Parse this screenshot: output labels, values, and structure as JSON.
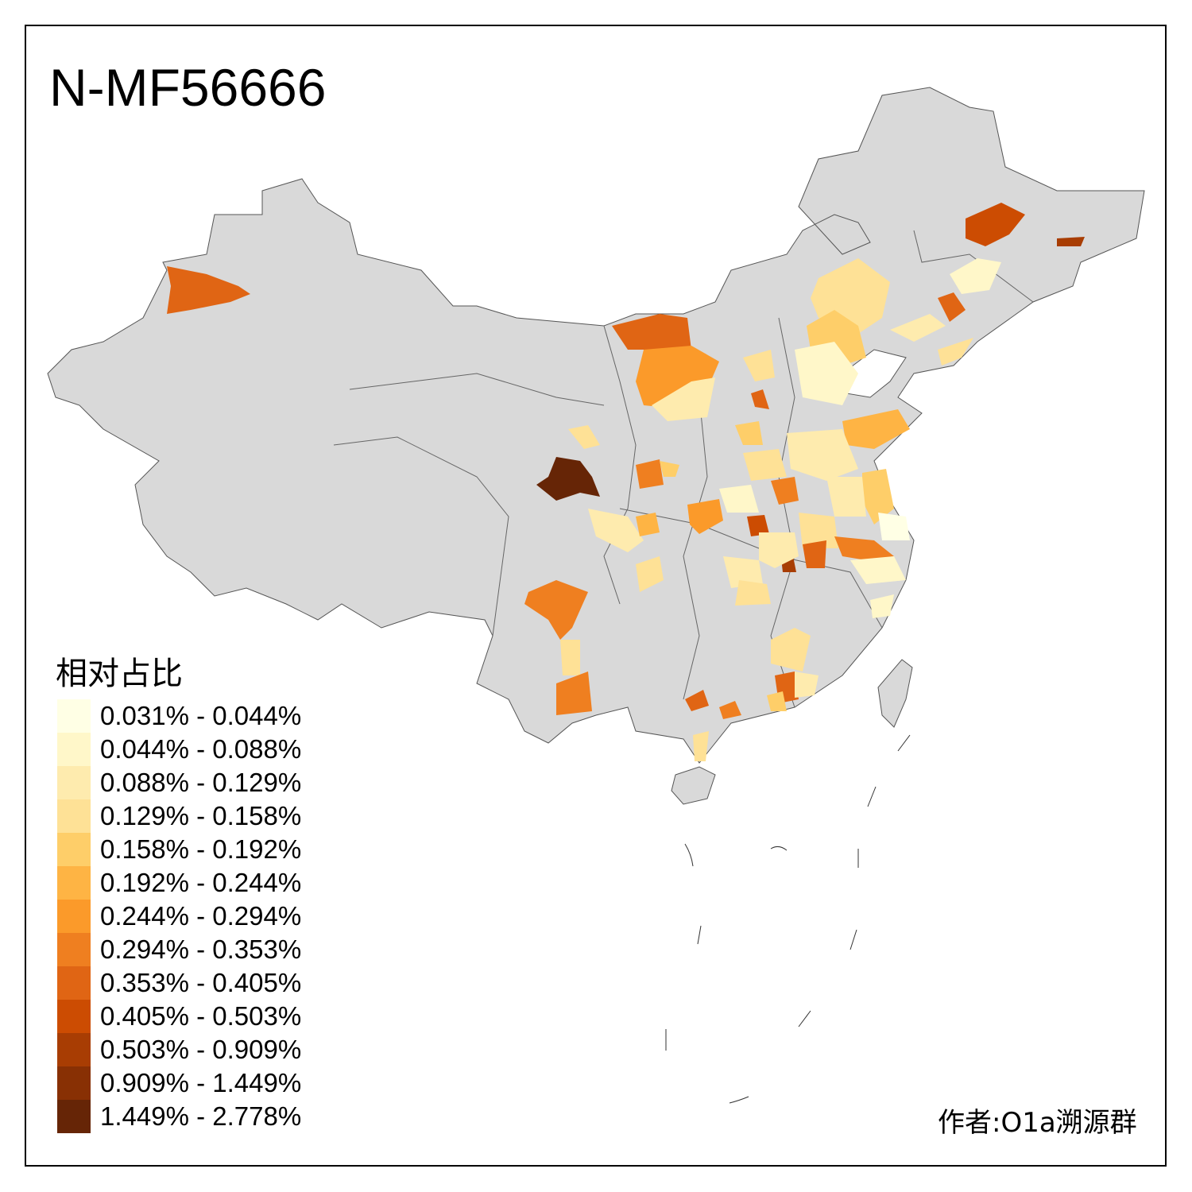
{
  "title": "N-MF56666",
  "legend": {
    "title": "相对占比",
    "classes": [
      {
        "label": "0.031% - 0.044%",
        "color": "#FFFFE5"
      },
      {
        "label": "0.044% - 0.088%",
        "color": "#FFF7C9"
      },
      {
        "label": "0.088% - 0.129%",
        "color": "#FEEBAE"
      },
      {
        "label": "0.129% - 0.158%",
        "color": "#FEE196"
      },
      {
        "label": "0.158% - 0.192%",
        "color": "#FECE69"
      },
      {
        "label": "0.192% - 0.244%",
        "color": "#FEB444"
      },
      {
        "label": "0.244% - 0.294%",
        "color": "#FB9A2A"
      },
      {
        "label": "0.294% - 0.353%",
        "color": "#EF7F20"
      },
      {
        "label": "0.353% - 0.405%",
        "color": "#E06514"
      },
      {
        "label": "0.405% - 0.503%",
        "color": "#CC4C02"
      },
      {
        "label": "0.503% - 0.909%",
        "color": "#A83D03"
      },
      {
        "label": "0.909% - 1.449%",
        "color": "#883004"
      },
      {
        "label": "1.449% - 2.778%",
        "color": "#662506"
      }
    ]
  },
  "colors": {
    "land": "#D9D9D9",
    "border": "#555555"
  },
  "credit": "作者:O1a溯源群"
}
